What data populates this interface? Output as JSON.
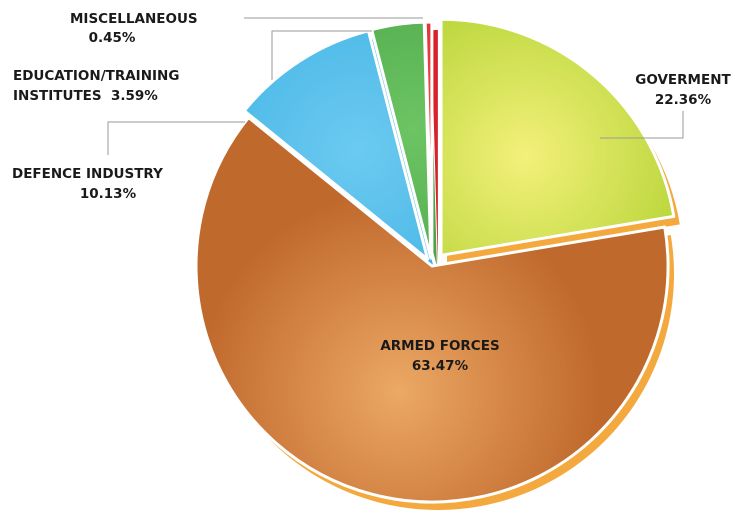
{
  "chart_data": {
    "type": "pie",
    "title": "",
    "slices": [
      {
        "label": "GOVERMENT",
        "value": 22.36,
        "value_label": "22.36%",
        "color": "#aed12e",
        "highlight": "#f3f07a",
        "rim": "#f4a93f"
      },
      {
        "label": "ARMED FORCES",
        "value": 63.47,
        "value_label": "63.47%",
        "color": "#c0692c",
        "highlight": "#eca865",
        "rim": "#f4a93f"
      },
      {
        "label": "DEFENCE INDUSTRY",
        "value": 10.13,
        "value_label": "10.13%",
        "color": "#3fb2e4",
        "highlight": "#6ccaf0",
        "rim": "#3fb2e4"
      },
      {
        "label": "EDUCATION/TRAINING INSTITUTES",
        "label_lines": [
          "EDUCATION/TRAINING",
          "INSTITUTES  3.59%"
        ],
        "value": 3.59,
        "value_label": "3.59%",
        "color": "#4ba547",
        "highlight": "#6cc463",
        "rim": "#4ba547"
      },
      {
        "label": "MISCELLANEOUS",
        "value": 0.45,
        "value_label": "0.45%",
        "color": "#d8222a",
        "highlight": "#ef4a48",
        "rim": "#d8222a"
      }
    ]
  }
}
